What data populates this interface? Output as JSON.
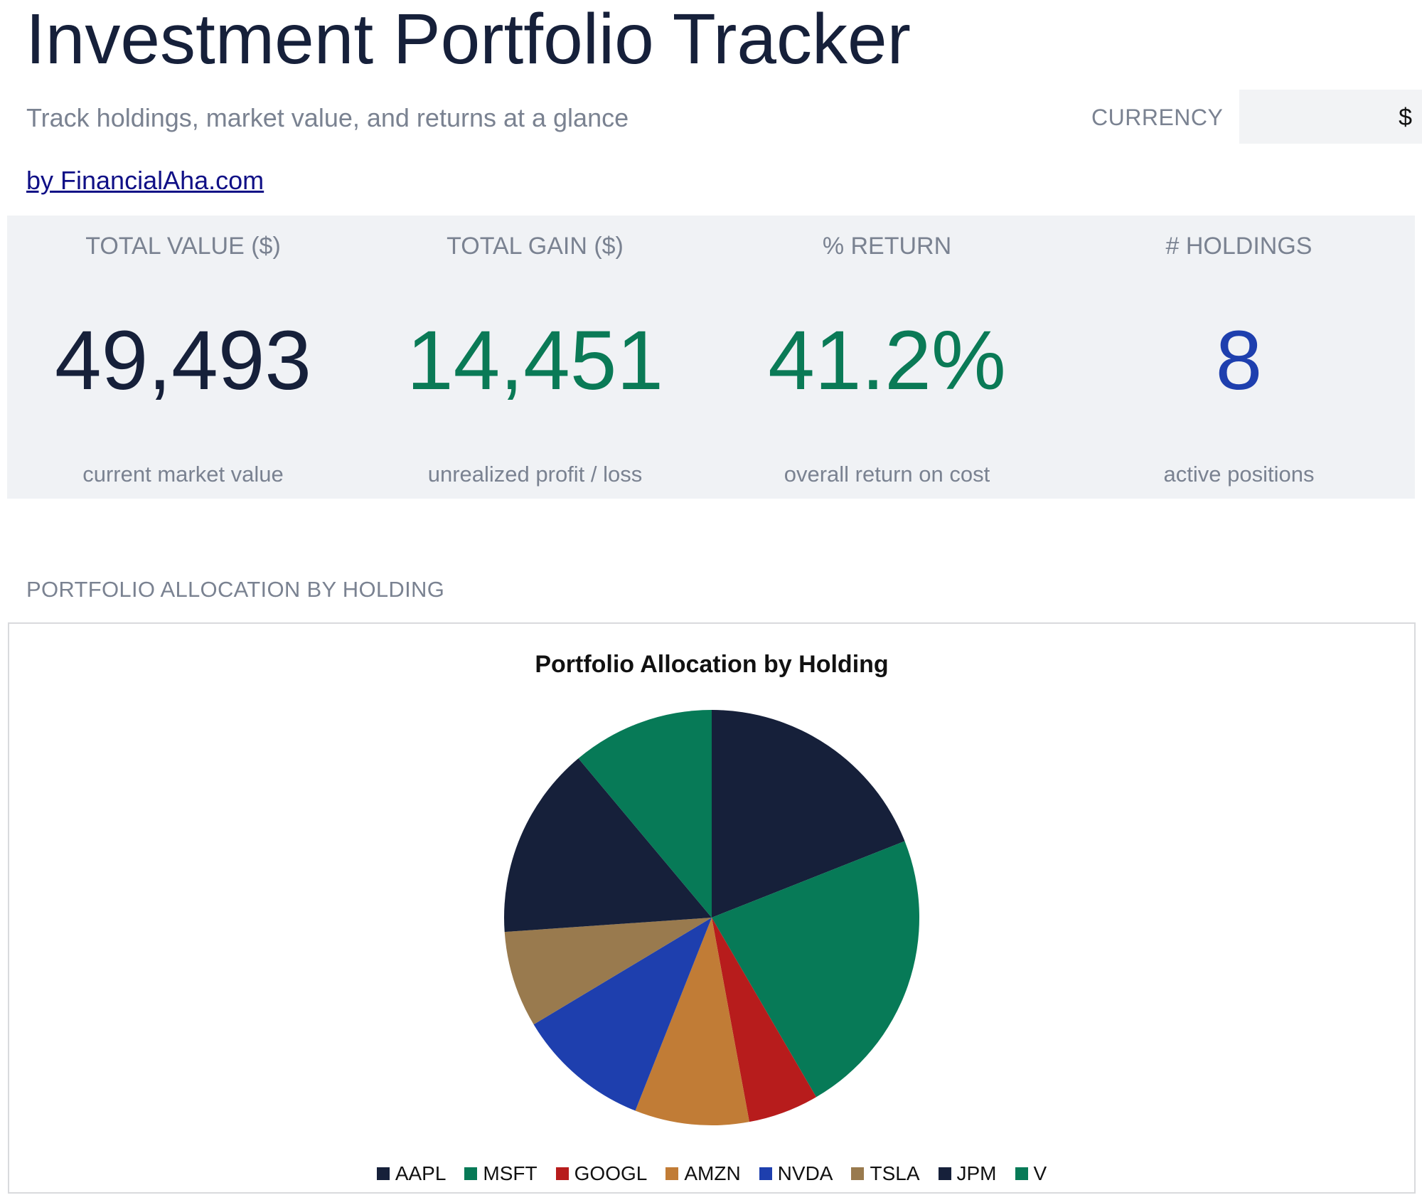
{
  "header": {
    "title": "Investment Portfolio Tracker",
    "subtitle": "Track holdings, market value, and returns at a glance",
    "byline": "by FinancialAha.com",
    "currency_label": "CURRENCY",
    "currency_value": "$"
  },
  "kpis": [
    {
      "label": "TOTAL VALUE ($)",
      "value": "49,493",
      "sub": "current market value",
      "color": "#16203a"
    },
    {
      "label": "TOTAL GAIN ($)",
      "value": "14,451",
      "sub": "unrealized profit / loss",
      "color": "#0a7a56"
    },
    {
      "label": "% RETURN",
      "value": "41.2%",
      "sub": "overall return on cost",
      "color": "#0a7a56"
    },
    {
      "label": "# HOLDINGS",
      "value": "8",
      "sub": "active positions",
      "color": "#1e3fae"
    }
  ],
  "section_heading": "PORTFOLIO ALLOCATION BY HOLDING",
  "chart_data": {
    "type": "pie",
    "title": "Portfolio Allocation by Holding",
    "categories": [
      "AAPL",
      "MSFT",
      "GOOGL",
      "AMZN",
      "NVDA",
      "TSLA",
      "JPM",
      "V"
    ],
    "values": [
      19.0,
      22.6,
      5.5,
      8.9,
      10.4,
      7.5,
      15.0,
      11.1
    ],
    "unit": "%",
    "colors": [
      "#16203a",
      "#077a57",
      "#b71c1c",
      "#c17c36",
      "#1e3fae",
      "#997a4e",
      "#16203a",
      "#077a57"
    ],
    "legend": "bottom"
  }
}
